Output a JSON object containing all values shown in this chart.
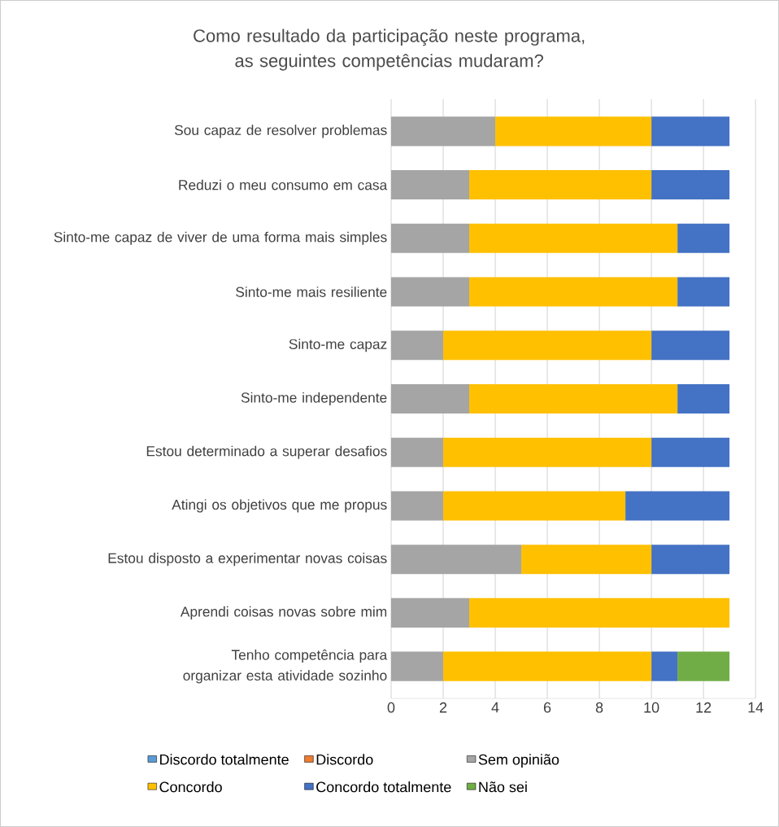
{
  "chart_data": {
    "type": "bar",
    "orientation": "horizontal",
    "stacked": true,
    "title": "Como resultado da participação neste programa, as seguintes competências mudaram?",
    "categories": [
      "Sou capaz de resolver problemas",
      "Reduzi o meu consumo em casa",
      "Sinto-me capaz de viver de uma forma mais simples",
      "Sinto-me mais resiliente",
      "Sinto-me capaz",
      "Sinto-me independente",
      "Estou determinado a superar desafios",
      "Atingi os objetivos que me propus",
      "Estou disposto a experimentar novas coisas",
      "Aprendi coisas novas sobre mim",
      "Tenho competência para organizar esta atividade sozinho"
    ],
    "series": [
      {
        "name": "Discordo totalmente",
        "color": "#5b9bd5",
        "values": [
          0,
          0,
          0,
          0,
          0,
          0,
          0,
          0,
          0,
          0,
          0
        ]
      },
      {
        "name": "Discordo",
        "color": "#ed7d31",
        "values": [
          0,
          0,
          0,
          0,
          0,
          0,
          0,
          0,
          0,
          0,
          0
        ]
      },
      {
        "name": "Sem opinião",
        "color": "#a5a5a5",
        "values": [
          4,
          3,
          3,
          3,
          2,
          3,
          2,
          2,
          5,
          3,
          2
        ]
      },
      {
        "name": "Concordo",
        "color": "#ffc000",
        "values": [
          6,
          7,
          8,
          8,
          8,
          8,
          8,
          7,
          5,
          10,
          8
        ]
      },
      {
        "name": "Concordo totalmente",
        "color": "#4472c4",
        "values": [
          3,
          3,
          2,
          2,
          3,
          2,
          3,
          4,
          3,
          0,
          1
        ]
      },
      {
        "name": "Não sei",
        "color": "#70ad47",
        "values": [
          0,
          0,
          0,
          0,
          0,
          0,
          0,
          0,
          0,
          0,
          2
        ]
      }
    ],
    "xlim": [
      0,
      14
    ],
    "xticks": [
      0,
      2,
      4,
      6,
      8,
      10,
      12,
      14
    ],
    "grid": "x",
    "legend": "bottom"
  }
}
